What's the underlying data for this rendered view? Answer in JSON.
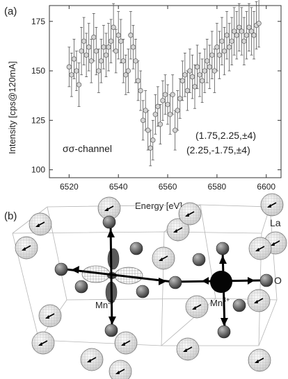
{
  "panel_a": {
    "label": "(a)",
    "channel_label": "σσ-channel",
    "annotations": [
      "(1.75,2.25,±4)",
      "(2.25,-1.75,±4)"
    ],
    "ylabel": "Intensity [cps@120mA]",
    "xlabel": "Energy [eV]"
  },
  "panel_b": {
    "label": "(b)",
    "atom_labels": {
      "la": "La",
      "o": "O",
      "mn3": "Mn",
      "mn3_sup": "3+",
      "mn4": "Mn",
      "mn4_sup": "4+"
    }
  },
  "chart_data": {
    "type": "scatter",
    "xlabel": "Energy [eV]",
    "ylabel": "Intensity [cps@120mA]",
    "xlim": [
      6512,
      6606
    ],
    "ylim": [
      96,
      183
    ],
    "xticks": [
      6520,
      6540,
      6560,
      6580,
      6600
    ],
    "yticks": [
      100,
      125,
      150,
      175
    ],
    "grid": false,
    "legend": "none",
    "points": [
      {
        "x": 6520,
        "y": 152,
        "e": 10
      },
      {
        "x": 6521,
        "y": 148,
        "e": 11
      },
      {
        "x": 6522,
        "y": 156,
        "e": 10
      },
      {
        "x": 6523,
        "y": 150,
        "e": 10
      },
      {
        "x": 6524,
        "y": 143,
        "e": 11
      },
      {
        "x": 6525,
        "y": 160,
        "e": 12
      },
      {
        "x": 6526,
        "y": 165,
        "e": 12
      },
      {
        "x": 6527,
        "y": 158,
        "e": 11
      },
      {
        "x": 6528,
        "y": 162,
        "e": 12
      },
      {
        "x": 6529,
        "y": 155,
        "e": 11
      },
      {
        "x": 6530,
        "y": 167,
        "e": 12
      },
      {
        "x": 6531,
        "y": 160,
        "e": 12
      },
      {
        "x": 6532,
        "y": 150,
        "e": 11
      },
      {
        "x": 6533,
        "y": 155,
        "e": 11
      },
      {
        "x": 6534,
        "y": 162,
        "e": 11
      },
      {
        "x": 6535,
        "y": 158,
        "e": 11
      },
      {
        "x": 6536,
        "y": 162,
        "e": 12
      },
      {
        "x": 6537,
        "y": 165,
        "e": 11
      },
      {
        "x": 6538,
        "y": 172,
        "e": 12
      },
      {
        "x": 6539,
        "y": 160,
        "e": 11
      },
      {
        "x": 6540,
        "y": 168,
        "e": 12
      },
      {
        "x": 6541,
        "y": 165,
        "e": 11
      },
      {
        "x": 6542,
        "y": 155,
        "e": 11
      },
      {
        "x": 6543,
        "y": 148,
        "e": 10
      },
      {
        "x": 6544,
        "y": 150,
        "e": 11
      },
      {
        "x": 6545,
        "y": 168,
        "e": 12
      },
      {
        "x": 6546,
        "y": 162,
        "e": 11
      },
      {
        "x": 6547,
        "y": 155,
        "e": 11
      },
      {
        "x": 6548,
        "y": 145,
        "e": 10
      },
      {
        "x": 6549,
        "y": 140,
        "e": 10
      },
      {
        "x": 6550,
        "y": 125,
        "e": 10
      },
      {
        "x": 6551,
        "y": 130,
        "e": 10
      },
      {
        "x": 6552,
        "y": 120,
        "e": 10
      },
      {
        "x": 6553,
        "y": 111,
        "e": 9
      },
      {
        "x": 6554,
        "y": 115,
        "e": 10
      },
      {
        "x": 6555,
        "y": 128,
        "e": 10
      },
      {
        "x": 6556,
        "y": 132,
        "e": 10
      },
      {
        "x": 6557,
        "y": 123,
        "e": 10
      },
      {
        "x": 6558,
        "y": 135,
        "e": 10
      },
      {
        "x": 6559,
        "y": 138,
        "e": 10
      },
      {
        "x": 6560,
        "y": 133,
        "e": 10
      },
      {
        "x": 6561,
        "y": 128,
        "e": 10
      },
      {
        "x": 6562,
        "y": 138,
        "e": 10
      },
      {
        "x": 6563,
        "y": 120,
        "e": 10
      },
      {
        "x": 6564,
        "y": 130,
        "e": 10
      },
      {
        "x": 6565,
        "y": 136,
        "e": 10
      },
      {
        "x": 6566,
        "y": 145,
        "e": 10
      },
      {
        "x": 6567,
        "y": 148,
        "e": 11
      },
      {
        "x": 6568,
        "y": 140,
        "e": 10
      },
      {
        "x": 6569,
        "y": 150,
        "e": 11
      },
      {
        "x": 6570,
        "y": 147,
        "e": 11
      },
      {
        "x": 6571,
        "y": 142,
        "e": 11
      },
      {
        "x": 6572,
        "y": 152,
        "e": 11
      },
      {
        "x": 6573,
        "y": 148,
        "e": 11
      },
      {
        "x": 6574,
        "y": 145,
        "e": 11
      },
      {
        "x": 6575,
        "y": 150,
        "e": 11
      },
      {
        "x": 6576,
        "y": 155,
        "e": 11
      },
      {
        "x": 6577,
        "y": 152,
        "e": 11
      },
      {
        "x": 6578,
        "y": 158,
        "e": 12
      },
      {
        "x": 6579,
        "y": 150,
        "e": 11
      },
      {
        "x": 6580,
        "y": 162,
        "e": 12
      },
      {
        "x": 6581,
        "y": 158,
        "e": 12
      },
      {
        "x": 6582,
        "y": 165,
        "e": 12
      },
      {
        "x": 6583,
        "y": 160,
        "e": 12
      },
      {
        "x": 6584,
        "y": 168,
        "e": 12
      },
      {
        "x": 6585,
        "y": 162,
        "e": 12
      },
      {
        "x": 6586,
        "y": 165,
        "e": 12
      },
      {
        "x": 6587,
        "y": 170,
        "e": 12
      },
      {
        "x": 6588,
        "y": 168,
        "e": 12
      },
      {
        "x": 6589,
        "y": 172,
        "e": 12
      },
      {
        "x": 6590,
        "y": 170,
        "e": 12
      },
      {
        "x": 6591,
        "y": 165,
        "e": 12
      },
      {
        "x": 6592,
        "y": 168,
        "e": 12
      },
      {
        "x": 6593,
        "y": 172,
        "e": 12
      },
      {
        "x": 6594,
        "y": 170,
        "e": 12
      },
      {
        "x": 6595,
        "y": 168,
        "e": 12
      },
      {
        "x": 6596,
        "y": 173,
        "e": 12
      },
      {
        "x": 6597,
        "y": 174,
        "e": 12
      }
    ]
  }
}
